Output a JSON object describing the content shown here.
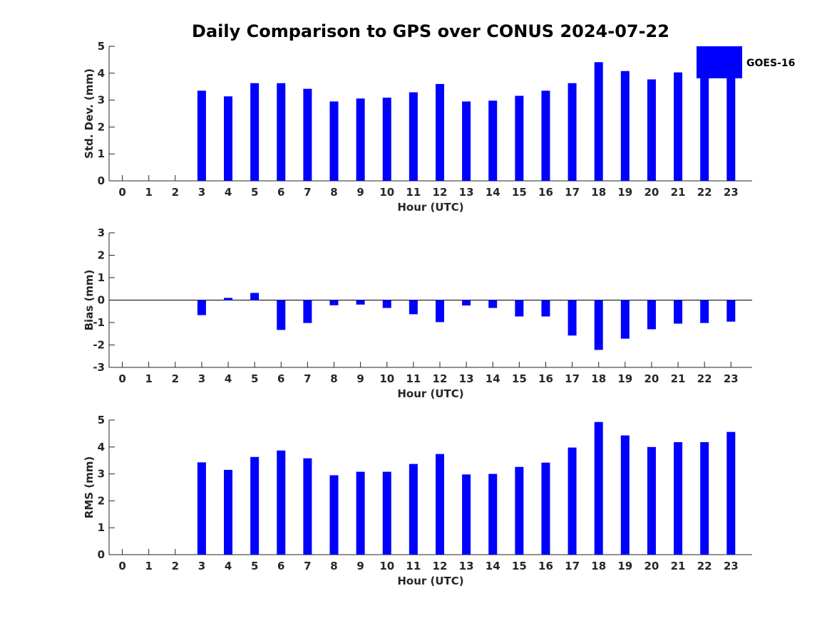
{
  "chart_data": {
    "title": "Daily Comparison to GPS over CONUS 2024-07-22",
    "legend": {
      "label": "GOES-16",
      "color": "#0000ff",
      "placement": "top-right"
    },
    "hours": [
      0,
      1,
      2,
      3,
      4,
      5,
      6,
      7,
      8,
      9,
      10,
      11,
      12,
      13,
      14,
      15,
      16,
      17,
      18,
      19,
      20,
      21,
      22,
      23
    ],
    "panels": [
      {
        "type": "bar",
        "key": "stddev",
        "ylabel": "Std. Dev. (mm)",
        "xlabel": "Hour (UTC)",
        "ylim": [
          0,
          5
        ],
        "yticks": [
          0,
          1,
          2,
          3,
          4,
          5
        ],
        "values": [
          null,
          null,
          null,
          3.35,
          3.14,
          3.63,
          3.63,
          3.42,
          2.95,
          3.06,
          3.09,
          3.29,
          3.6,
          2.95,
          2.98,
          3.16,
          3.35,
          3.63,
          4.41,
          4.08,
          3.77,
          4.03,
          3.9,
          3.9
        ]
      },
      {
        "type": "bar",
        "key": "bias",
        "ylabel": "Bias (mm)",
        "xlabel": "Hour (UTC)",
        "ylim": [
          -3,
          3
        ],
        "yticks": [
          -3,
          -2,
          -1,
          0,
          1,
          2,
          3
        ],
        "values": [
          null,
          null,
          null,
          -0.67,
          0.1,
          0.32,
          -1.33,
          -1.02,
          -0.23,
          -0.2,
          -0.35,
          -0.63,
          -0.98,
          -0.24,
          -0.35,
          -0.73,
          -0.73,
          -1.58,
          -2.22,
          -1.72,
          -1.3,
          -1.05,
          -1.02,
          -0.96
        ]
      },
      {
        "type": "bar",
        "key": "rms",
        "ylabel": "RMS (mm)",
        "xlabel": "Hour (UTC)",
        "ylim": [
          0,
          5
        ],
        "yticks": [
          0,
          1,
          2,
          3,
          4,
          5
        ],
        "values": [
          null,
          null,
          null,
          3.43,
          3.15,
          3.63,
          3.87,
          3.58,
          2.95,
          3.08,
          3.08,
          3.37,
          3.74,
          2.98,
          3.0,
          3.26,
          3.42,
          3.98,
          4.93,
          4.43,
          4.0,
          4.18,
          4.18,
          4.56
        ]
      }
    ]
  }
}
